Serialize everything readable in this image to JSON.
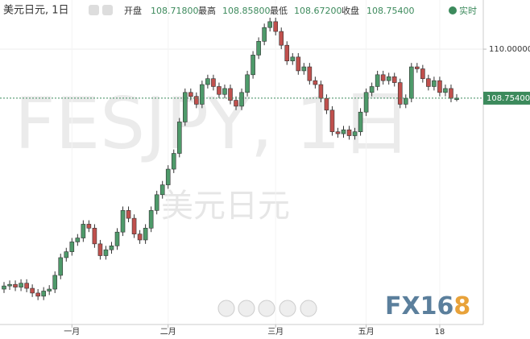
{
  "header": {
    "symbol": "美元日元, 1日",
    "open_label": "开盘",
    "open": "108.71800",
    "high_label": "最高",
    "high": "108.85800",
    "low_label": "最低",
    "low": "108.67200",
    "close_label": "收盘",
    "close": "108.75400",
    "realtime": "实时"
  },
  "watermark": {
    "big": "FESJPY, 1日",
    "small": "美元日元"
  },
  "logo": {
    "main": "FX16",
    "accent": "8"
  },
  "chart_data": {
    "type": "candlestick",
    "categories": [
      null,
      null,
      null,
      null,
      null,
      null,
      null,
      null,
      null,
      null,
      null,
      null,
      "一月",
      null,
      null,
      null,
      null,
      null,
      null,
      null,
      null,
      null,
      null,
      null,
      null,
      null,
      null,
      null,
      null,
      "二月",
      null,
      null,
      null,
      null,
      null,
      null,
      null,
      null,
      null,
      null,
      null,
      null,
      null,
      null,
      null,
      null,
      null,
      null,
      "三月",
      null,
      null,
      null,
      null,
      null,
      null,
      null,
      null,
      null,
      null,
      null,
      null,
      null,
      null,
      null,
      "五月",
      null,
      null,
      null,
      null,
      null,
      null,
      null,
      null,
      null,
      null,
      null,
      null,
      "18",
      null,
      null,
      null
    ],
    "open": [
      103.9,
      103.98,
      104.02,
      103.95,
      104.05,
      103.92,
      103.8,
      103.72,
      103.85,
      103.9,
      104.25,
      104.7,
      104.85,
      105.1,
      105.2,
      105.55,
      105.45,
      105.05,
      104.75,
      104.9,
      105.0,
      105.35,
      105.9,
      105.7,
      105.3,
      105.15,
      105.45,
      105.9,
      106.3,
      106.55,
      106.95,
      107.35,
      108.15,
      108.9,
      108.8,
      108.6,
      109.1,
      109.25,
      109.05,
      108.85,
      109.0,
      108.7,
      108.55,
      108.9,
      109.35,
      109.85,
      110.2,
      110.55,
      110.7,
      110.45,
      110.1,
      109.7,
      109.8,
      109.45,
      109.55,
      109.2,
      109.1,
      108.75,
      108.45,
      107.9,
      107.85,
      107.95,
      107.8,
      107.9,
      108.4,
      108.9,
      109.05,
      109.35,
      109.2,
      109.3,
      109.15,
      108.6,
      108.75,
      109.55,
      109.5,
      109.25,
      109.05,
      109.2,
      108.9,
      109.0,
      108.718
    ],
    "high": [
      104.08,
      104.12,
      104.12,
      104.15,
      104.15,
      104.02,
      103.9,
      103.95,
      104.0,
      104.35,
      104.8,
      104.95,
      105.2,
      105.3,
      105.65,
      105.65,
      105.55,
      105.15,
      105.0,
      105.1,
      105.45,
      106.0,
      106.0,
      105.8,
      105.4,
      105.55,
      106.0,
      106.4,
      106.65,
      107.05,
      107.45,
      108.25,
      109.0,
      109.0,
      108.9,
      109.2,
      109.35,
      109.35,
      109.15,
      109.1,
      109.1,
      108.8,
      109.0,
      109.45,
      109.95,
      110.3,
      110.65,
      110.8,
      110.8,
      110.55,
      110.2,
      109.9,
      109.9,
      109.65,
      109.65,
      109.3,
      109.2,
      108.85,
      108.55,
      108.0,
      108.05,
      108.05,
      108.0,
      108.5,
      109.0,
      109.15,
      109.45,
      109.45,
      109.4,
      109.4,
      109.25,
      108.85,
      109.65,
      109.65,
      109.6,
      109.35,
      109.3,
      109.3,
      109.1,
      109.1,
      108.858
    ],
    "low": [
      103.8,
      103.88,
      103.85,
      103.85,
      103.82,
      103.7,
      103.62,
      103.62,
      103.75,
      103.8,
      104.15,
      104.6,
      104.75,
      105.0,
      105.1,
      105.35,
      104.95,
      104.65,
      104.65,
      104.8,
      104.9,
      105.25,
      105.6,
      105.2,
      105.05,
      105.05,
      105.35,
      105.8,
      106.2,
      106.45,
      106.85,
      107.25,
      108.05,
      108.7,
      108.5,
      108.5,
      109.0,
      108.95,
      108.75,
      108.75,
      108.6,
      108.45,
      108.45,
      108.8,
      109.25,
      109.75,
      110.1,
      110.45,
      110.35,
      110.0,
      109.6,
      109.6,
      109.35,
      109.35,
      109.1,
      109.0,
      108.65,
      108.35,
      107.8,
      107.75,
      107.75,
      107.7,
      107.7,
      107.8,
      108.3,
      108.8,
      108.95,
      109.1,
      109.1,
      109.05,
      108.5,
      108.5,
      108.65,
      109.4,
      109.15,
      108.95,
      108.95,
      108.8,
      108.8,
      108.65,
      108.672
    ],
    "close": [
      103.98,
      104.02,
      103.95,
      104.05,
      103.92,
      103.8,
      103.72,
      103.85,
      103.9,
      104.25,
      104.7,
      104.85,
      105.1,
      105.2,
      105.55,
      105.45,
      105.05,
      104.75,
      104.9,
      105.0,
      105.35,
      105.9,
      105.7,
      105.3,
      105.15,
      105.45,
      105.9,
      106.3,
      106.55,
      106.95,
      107.35,
      108.15,
      108.9,
      108.8,
      108.6,
      109.1,
      109.25,
      109.05,
      108.85,
      109.0,
      108.7,
      108.55,
      108.9,
      109.35,
      109.85,
      110.2,
      110.55,
      110.7,
      110.45,
      110.1,
      109.7,
      109.8,
      109.45,
      109.55,
      109.2,
      109.1,
      108.75,
      108.45,
      107.9,
      107.85,
      107.95,
      107.8,
      107.9,
      108.4,
      108.9,
      109.05,
      109.35,
      109.2,
      109.3,
      109.15,
      108.6,
      108.75,
      109.55,
      109.5,
      109.25,
      109.05,
      109.2,
      108.9,
      109.0,
      108.75,
      108.754
    ],
    "up_color": "#4e9a6a",
    "down_color": "#c0504d",
    "ylim": [
      103.0,
      111.25
    ],
    "yticks": [
      {
        "value": 110,
        "label": "110.00000"
      }
    ],
    "last_price": {
      "value": 108.754,
      "label": "108.75400"
    },
    "last_price_color": "#3c8a5c",
    "grid": true
  }
}
